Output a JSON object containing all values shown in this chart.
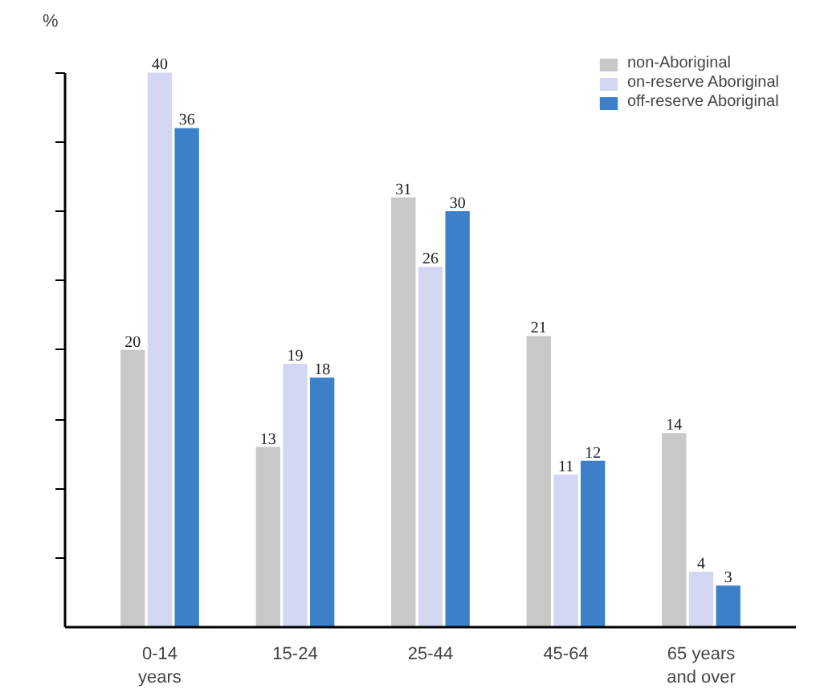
{
  "chart_data": {
    "type": "bar",
    "ylabel": "%",
    "categories": [
      "0-14\nyears",
      "15-24",
      "25-44",
      "45-64",
      "65 years\nand over"
    ],
    "series": [
      {
        "name": "non-Aboriginal",
        "color": "#c8c8c8",
        "values": [
          20,
          13,
          31,
          21,
          14
        ]
      },
      {
        "name": "on-reserve Aboriginal",
        "color": "#d3d7f2",
        "values": [
          40,
          19,
          26,
          11,
          4
        ]
      },
      {
        "name": "off-reserve Aboriginal",
        "color": "#3b80c8",
        "values": [
          36,
          18,
          30,
          12,
          3
        ]
      }
    ],
    "ylim": [
      0,
      40
    ],
    "yticks": [
      {
        "value": 5,
        "label": null
      },
      {
        "value": 10,
        "label": null
      },
      {
        "value": 15,
        "label": null
      },
      {
        "value": 20,
        "label": null
      },
      {
        "value": 25,
        "label": null
      },
      {
        "value": 30,
        "label": null
      },
      {
        "value": 35,
        "label": null
      },
      {
        "value": 40,
        "label": null
      }
    ],
    "tick_labels": "x",
    "data_labels": true,
    "grid": false,
    "legend": "top right"
  }
}
